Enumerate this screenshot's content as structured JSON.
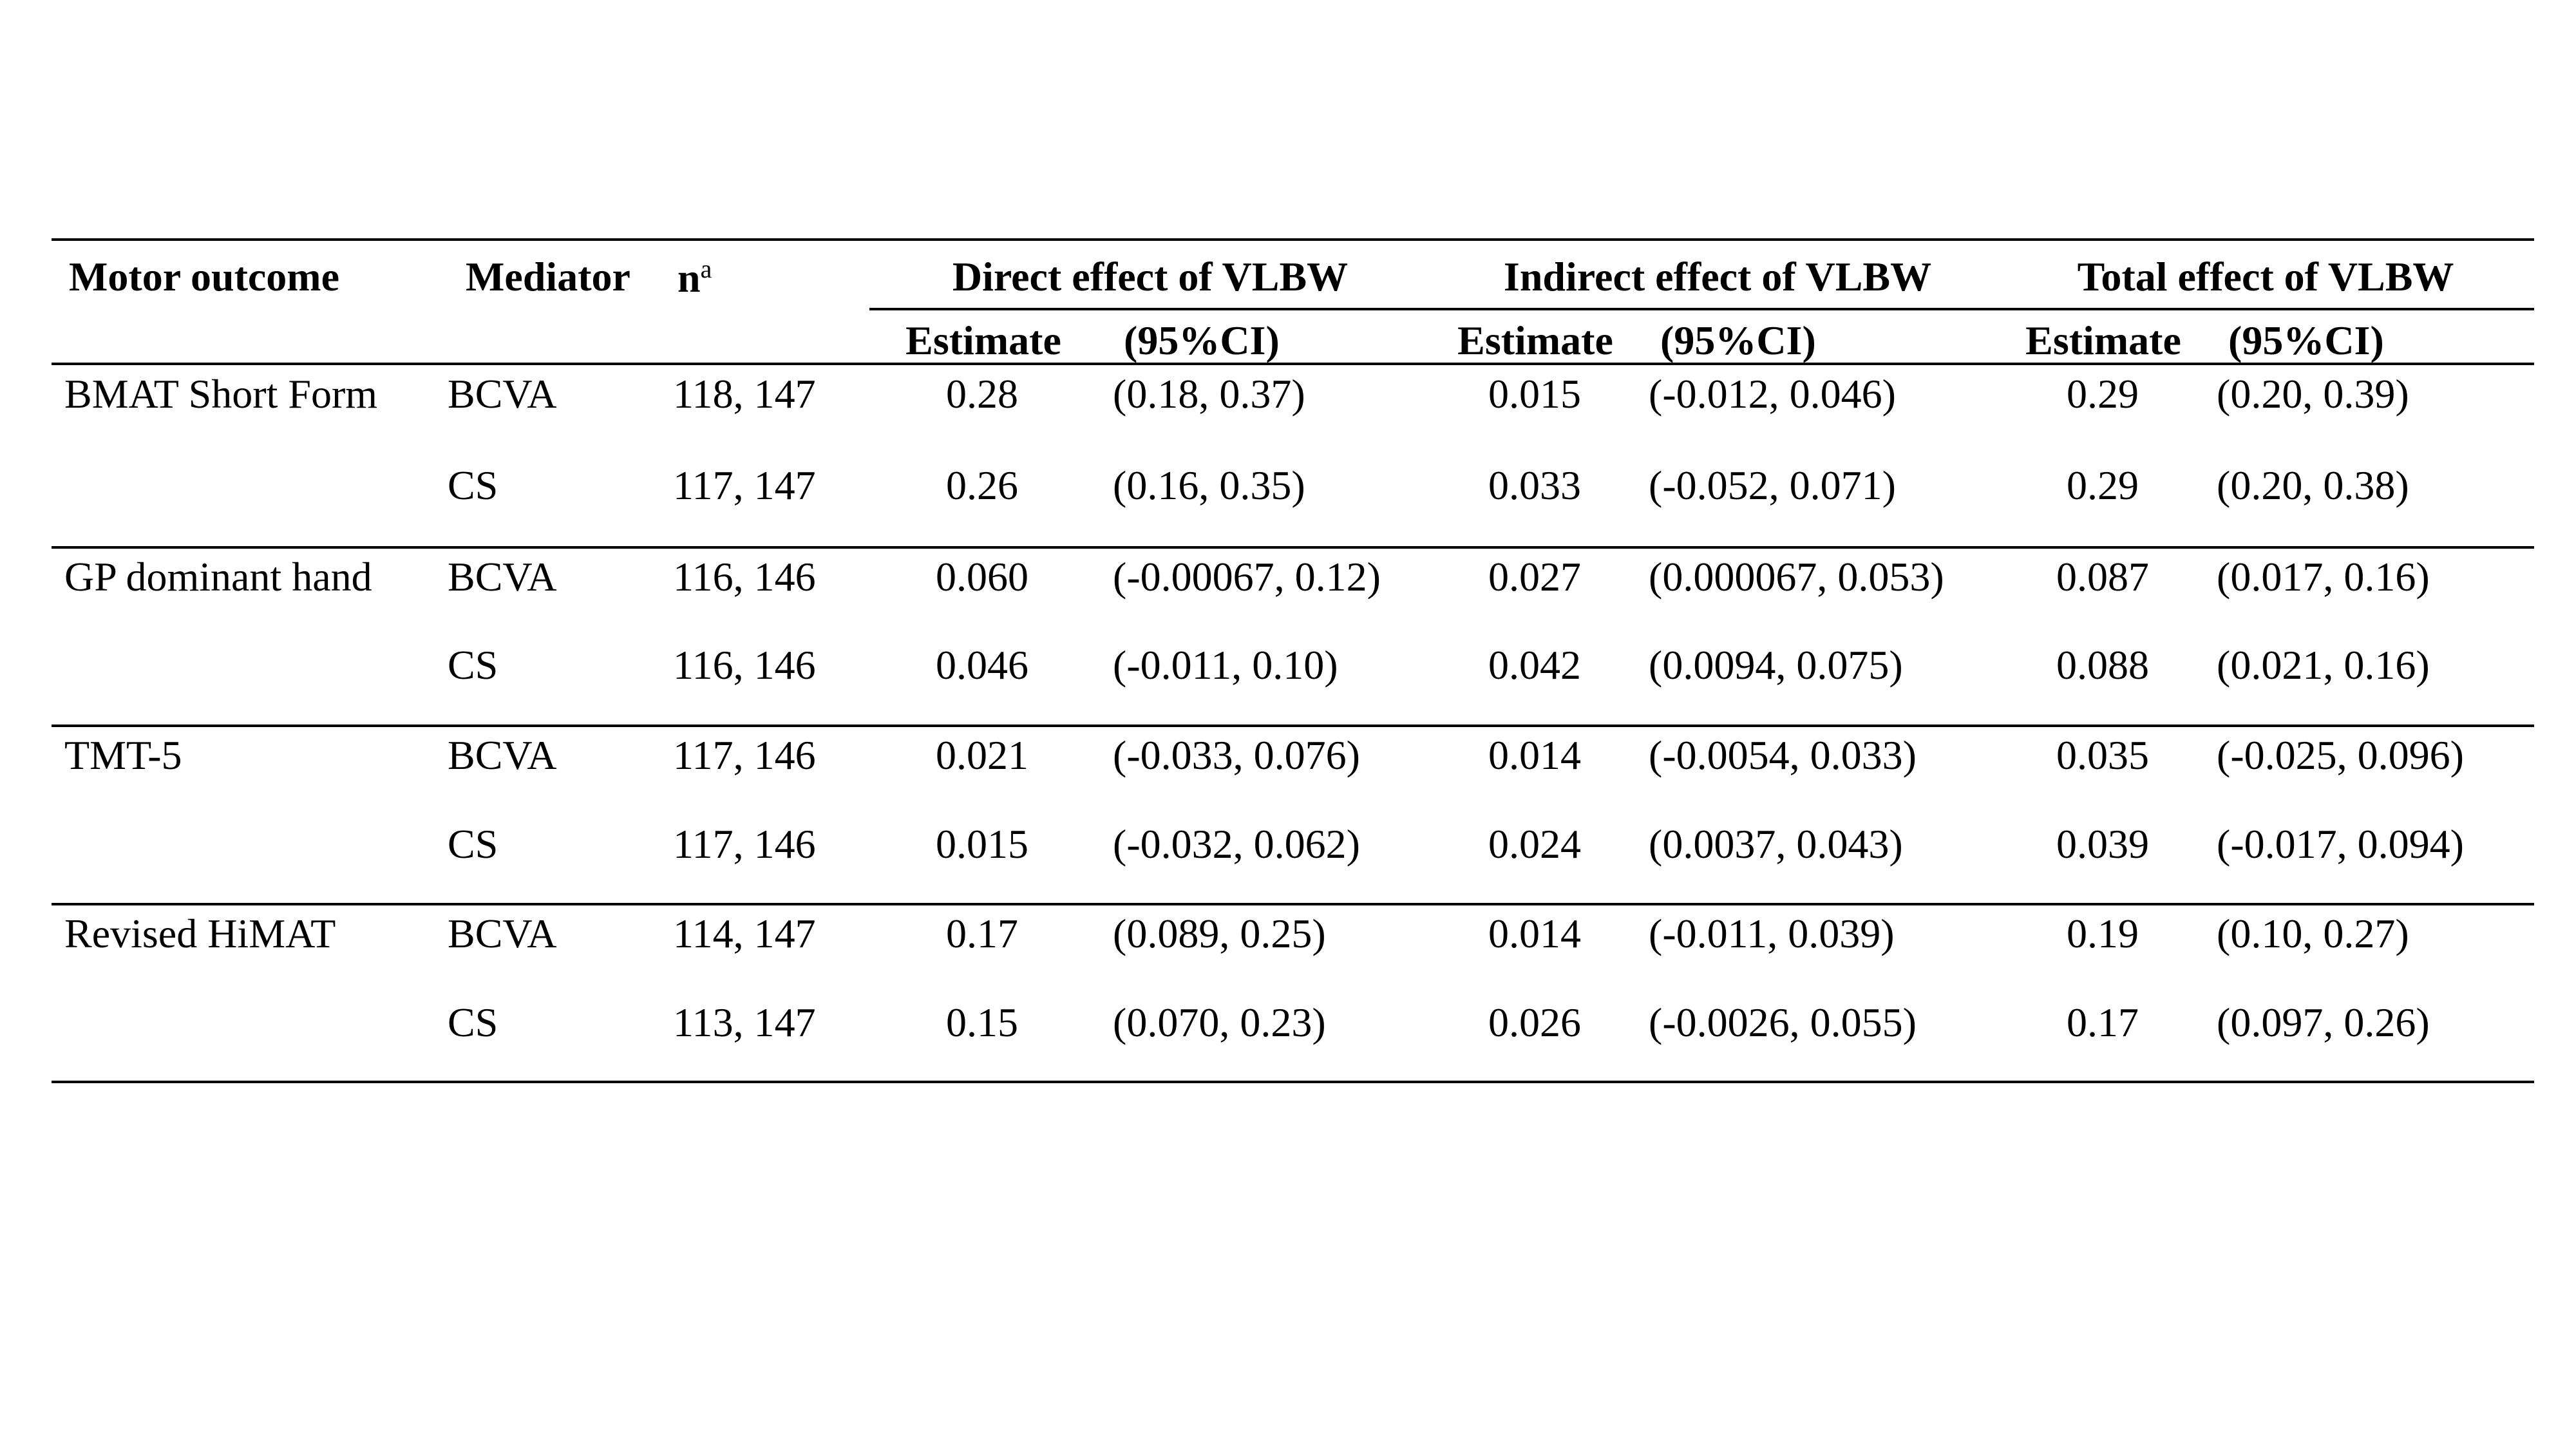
{
  "header": {
    "motor_outcome": "Motor outcome",
    "mediator": "Mediator",
    "n": "n",
    "n_sup": "a",
    "direct": "Direct effect of VLBW",
    "indirect": "Indirect effect of VLBW",
    "total": "Total effect of VLBW",
    "estimate": "Estimate",
    "ci": "(95%CI)"
  },
  "rows": [
    {
      "outcome": "BMAT Short Form",
      "mediator": "BCVA",
      "n": "118, 147",
      "direct_est": "0.28",
      "direct_ci": "(0.18, 0.37)",
      "indirect_est": "0.015",
      "indirect_ci": "(-0.012, 0.046)",
      "total_est": "0.29",
      "total_ci": "(0.20, 0.39)"
    },
    {
      "outcome": "",
      "mediator": "CS",
      "n": "117, 147",
      "direct_est": "0.26",
      "direct_ci": "(0.16, 0.35)",
      "indirect_est": "0.033",
      "indirect_ci": "(-0.052, 0.071)",
      "total_est": "0.29",
      "total_ci": "(0.20, 0.38)"
    },
    {
      "outcome": "GP dominant hand",
      "mediator": "BCVA",
      "n": "116, 146",
      "direct_est": "0.060",
      "direct_ci": "(-0.00067, 0.12)",
      "indirect_est": "0.027",
      "indirect_ci": "(0.000067, 0.053)",
      "total_est": "0.087",
      "total_ci": "(0.017, 0.16)"
    },
    {
      "outcome": "",
      "mediator": "CS",
      "n": "116, 146",
      "direct_est": "0.046",
      "direct_ci": "(-0.011, 0.10)",
      "indirect_est": "0.042",
      "indirect_ci": "(0.0094, 0.075)",
      "total_est": "0.088",
      "total_ci": "(0.021, 0.16)"
    },
    {
      "outcome": "TMT-5",
      "mediator": "BCVA",
      "n": "117, 146",
      "direct_est": "0.021",
      "direct_ci": "(-0.033, 0.076)",
      "indirect_est": "0.014",
      "indirect_ci": "(-0.0054, 0.033)",
      "total_est": "0.035",
      "total_ci": "(-0.025, 0.096)"
    },
    {
      "outcome": "",
      "mediator": "CS",
      "n": "117, 146",
      "direct_est": "0.015",
      "direct_ci": "(-0.032, 0.062)",
      "indirect_est": "0.024",
      "indirect_ci": "(0.0037, 0.043)",
      "total_est": "0.039",
      "total_ci": "(-0.017, 0.094)"
    },
    {
      "outcome": "Revised HiMAT",
      "mediator": "BCVA",
      "n": "114, 147",
      "direct_est": "0.17",
      "direct_ci": "(0.089, 0.25)",
      "indirect_est": "0.014",
      "indirect_ci": "(-0.011, 0.039)",
      "total_est": "0.19",
      "total_ci": "(0.10, 0.27)"
    },
    {
      "outcome": "",
      "mediator": "CS",
      "n": "113, 147",
      "direct_est": "0.15",
      "direct_ci": "(0.070, 0.23)",
      "indirect_est": "0.026",
      "indirect_ci": "(-0.0026, 0.055)",
      "total_est": "0.17",
      "total_ci": "(0.097, 0.26)"
    }
  ]
}
